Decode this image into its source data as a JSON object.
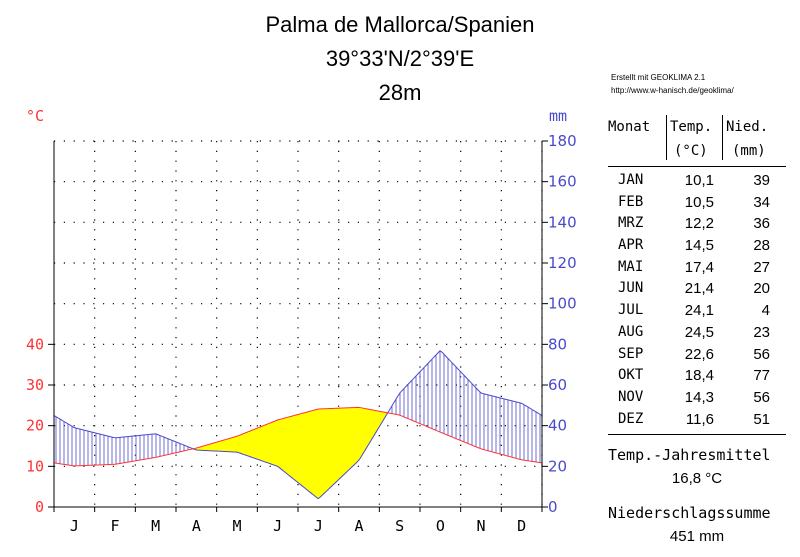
{
  "header": {
    "station": "Palma de Mallorca/Spanien",
    "coords": "39°33'N/2°39'E",
    "elevation": "28m",
    "credit_line1": "Erstellt mit GEOKLIMA 2.1",
    "credit_line2": "http://www.w-hanisch.de/geoklima/"
  },
  "axes": {
    "left_unit": "°C",
    "right_unit": "mm"
  },
  "table": {
    "col_month": "Monat",
    "col_temp": "Temp.",
    "col_temp_unit": "(°C)",
    "col_prec": "Nied.",
    "col_prec_unit": "(mm)",
    "rows": [
      {
        "month": "JAN",
        "temp": "10,1",
        "prec": "39"
      },
      {
        "month": "FEB",
        "temp": "10,5",
        "prec": "34"
      },
      {
        "month": "MRZ",
        "temp": "12,2",
        "prec": "36"
      },
      {
        "month": "APR",
        "temp": "14,5",
        "prec": "28"
      },
      {
        "month": "MAI",
        "temp": "17,4",
        "prec": "27"
      },
      {
        "month": "JUN",
        "temp": "21,4",
        "prec": "20"
      },
      {
        "month": "JUL",
        "temp": "24,1",
        "prec": "4"
      },
      {
        "month": "AUG",
        "temp": "24,5",
        "prec": "23"
      },
      {
        "month": "SEP",
        "temp": "22,6",
        "prec": "56"
      },
      {
        "month": "OKT",
        "temp": "18,4",
        "prec": "77"
      },
      {
        "month": "NOV",
        "temp": "14,3",
        "prec": "56"
      },
      {
        "month": "DEZ",
        "temp": "11,6",
        "prec": "51"
      }
    ]
  },
  "summary": {
    "mean_label": "Temp.-Jahresmittel",
    "mean_value": "16,8 °C",
    "sum_label": "Niederschlagssumme",
    "sum_value": "451 mm"
  },
  "chart_data": {
    "type": "line",
    "categories": [
      "J",
      "F",
      "M",
      "A",
      "M",
      "J",
      "J",
      "A",
      "S",
      "O",
      "N",
      "D"
    ],
    "series": [
      {
        "name": "Temp.",
        "values": [
          10.1,
          10.5,
          12.2,
          14.5,
          17.4,
          21.4,
          24.1,
          24.5,
          22.6,
          18.4,
          14.3,
          11.6
        ]
      },
      {
        "name": "Nied.",
        "values": [
          39,
          34,
          36,
          28,
          27,
          20,
          4,
          23,
          56,
          77,
          56,
          51
        ]
      }
    ],
    "temp_ticks": [
      0,
      10,
      20,
      30,
      40
    ],
    "prec_ticks": [
      0,
      20,
      40,
      60,
      80,
      100,
      120,
      140,
      160,
      180
    ],
    "temp_ylim": [
      0,
      90
    ],
    "prec_ylim": [
      0,
      180
    ],
    "grid": true,
    "colors": {
      "temp": "#ff3333",
      "prec": "#4a4acc",
      "arid": "#ffff00",
      "humid_hatch": "#4a4acc"
    }
  }
}
